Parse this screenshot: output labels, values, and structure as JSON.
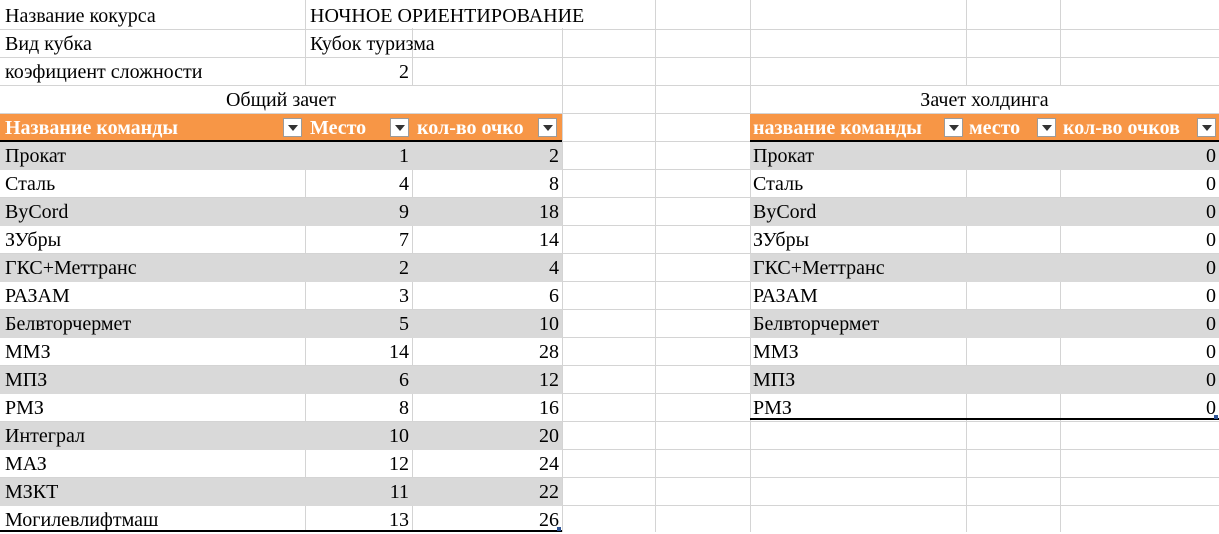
{
  "info": {
    "contest_label": "Название кокурса",
    "contest_value": "НОЧНОЕ ОРИЕНТИРОВАНИЕ",
    "cup_label": "Вид кубка",
    "cup_value": "Кубок туризма",
    "coef_label": "коэфициент сложности",
    "coef_value": "2"
  },
  "overall": {
    "title": "Общий зачет",
    "headers": [
      "Название команды",
      "Место",
      "кол-во очко"
    ],
    "rows": [
      {
        "team": "Прокат",
        "place": "1",
        "points": "2"
      },
      {
        "team": "Сталь",
        "place": "4",
        "points": "8"
      },
      {
        "team": "ByCord",
        "place": "9",
        "points": "18"
      },
      {
        "team": "ЗУбры",
        "place": "7",
        "points": "14"
      },
      {
        "team": "ГКС+Меттранс",
        "place": "2",
        "points": "4"
      },
      {
        "team": "РАЗАМ",
        "place": "3",
        "points": "6"
      },
      {
        "team": "Белвторчермет",
        "place": "5",
        "points": "10"
      },
      {
        "team": "ММЗ",
        "place": "14",
        "points": "28"
      },
      {
        "team": "МПЗ",
        "place": "6",
        "points": "12"
      },
      {
        "team": "РМЗ",
        "place": "8",
        "points": "16"
      },
      {
        "team": "Интеграл",
        "place": "10",
        "points": "20"
      },
      {
        "team": "МАЗ",
        "place": "12",
        "points": "24"
      },
      {
        "team": "МЗКТ",
        "place": "11",
        "points": "22"
      },
      {
        "team": "Могилевлифтмаш",
        "place": "13",
        "points": "26"
      }
    ]
  },
  "holding": {
    "title": "Зачет холдинга",
    "headers": [
      "название команды",
      "место",
      "кол-во очков"
    ],
    "rows": [
      {
        "team": "Прокат",
        "place": "",
        "points": "0"
      },
      {
        "team": "Сталь",
        "place": "",
        "points": "0"
      },
      {
        "team": "ByCord",
        "place": "",
        "points": "0"
      },
      {
        "team": "ЗУбры",
        "place": "",
        "points": "0"
      },
      {
        "team": "ГКС+Меттранс",
        "place": "",
        "points": "0"
      },
      {
        "team": "РАЗАМ",
        "place": "",
        "points": "0"
      },
      {
        "team": "Белвторчермет",
        "place": "",
        "points": "0"
      },
      {
        "team": "ММЗ",
        "place": "",
        "points": "0"
      },
      {
        "team": "МПЗ",
        "place": "",
        "points": "0"
      },
      {
        "team": "РМЗ",
        "place": "",
        "points": "0"
      }
    ]
  },
  "colors": {
    "header_bg": "#f79646",
    "band_bg": "#d9d9d9",
    "gridline": "#d4d4d4"
  }
}
